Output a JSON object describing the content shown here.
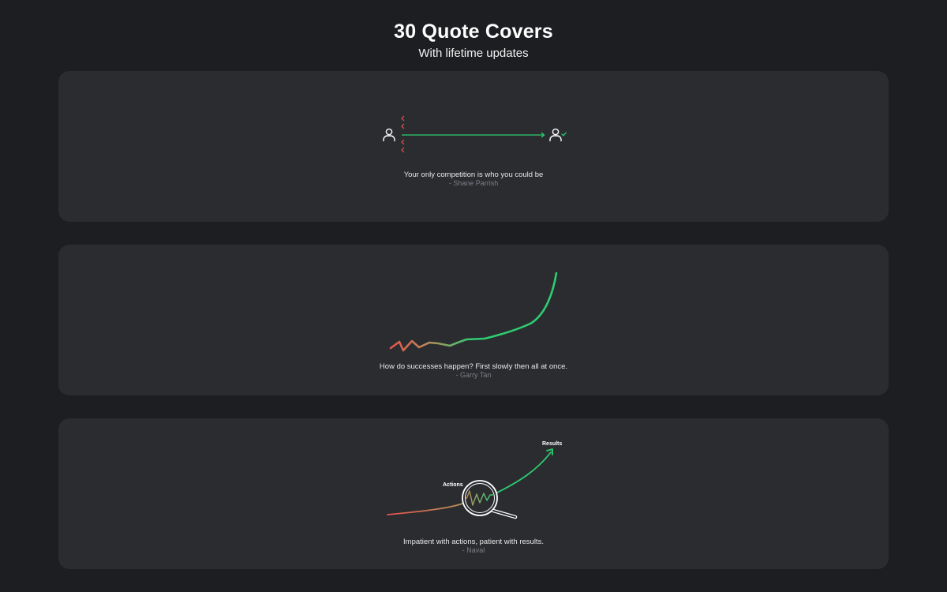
{
  "header": {
    "title": "30 Quote Covers",
    "subtitle": "With lifetime updates"
  },
  "covers": [
    {
      "quote": "Your only competition is who you could be",
      "author": "- Shane Parrish",
      "icons": [
        "user-icon",
        "user-check-icon"
      ],
      "colors": {
        "red": "#e5534b",
        "green": "#2ecc71"
      }
    },
    {
      "quote": "How do successes happen? First slowly then all at once.",
      "author": "- Garry Tan",
      "colors": {
        "red": "#e5534b",
        "green": "#2ecc71"
      }
    },
    {
      "quote": "Impatient with actions, patient with results.",
      "author": "- Naval",
      "labels": {
        "actions": "Actions",
        "results": "Results"
      },
      "icons": [
        "magnifier-icon"
      ],
      "colors": {
        "red": "#e5534b",
        "green": "#2ecc71"
      }
    }
  ]
}
